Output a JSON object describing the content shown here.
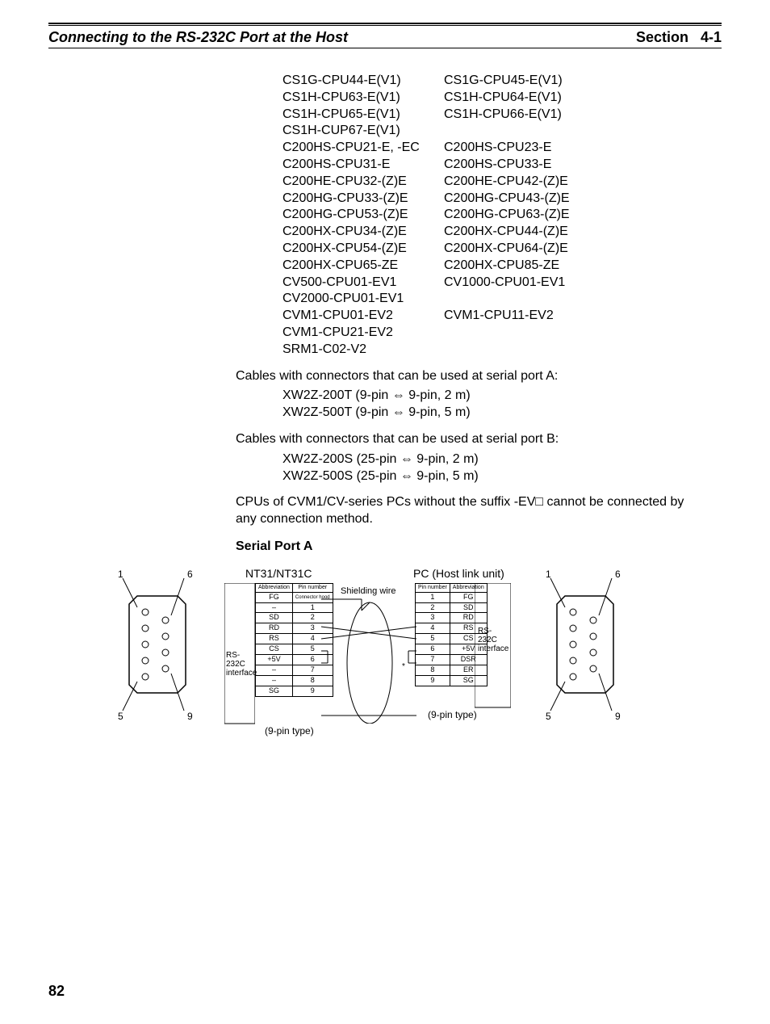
{
  "header": {
    "left": "Connecting to the RS-232C Port at the Host",
    "right_label": "Section",
    "right_num": "4-1"
  },
  "models": [
    [
      "CS1G-CPU44-E(V1)",
      "CS1G-CPU45-E(V1)"
    ],
    [
      "CS1H-CPU63-E(V1)",
      "CS1H-CPU64-E(V1)"
    ],
    [
      "CS1H-CPU65-E(V1)",
      "CS1H-CPU66-E(V1)"
    ],
    [
      "CS1H-CUP67-E(V1)",
      ""
    ],
    [
      "C200HS-CPU21-E, -EC",
      "C200HS-CPU23-E"
    ],
    [
      "C200HS-CPU31-E",
      "C200HS-CPU33-E"
    ],
    [
      "C200HE-CPU32-(Z)E",
      "C200HE-CPU42-(Z)E"
    ],
    [
      "C200HG-CPU33-(Z)E",
      "C200HG-CPU43-(Z)E"
    ],
    [
      "C200HG-CPU53-(Z)E",
      "C200HG-CPU63-(Z)E"
    ],
    [
      "C200HX-CPU34-(Z)E",
      "C200HX-CPU44-(Z)E"
    ],
    [
      "C200HX-CPU54-(Z)E",
      "C200HX-CPU64-(Z)E"
    ],
    [
      "C200HX-CPU65-ZE",
      "C200HX-CPU85-ZE"
    ],
    [
      "CV500-CPU01-EV1",
      "CV1000-CPU01-EV1"
    ],
    [
      "CV2000-CPU01-EV1",
      ""
    ],
    [
      "CVM1-CPU01-EV2",
      "CVM1-CPU11-EV2"
    ],
    [
      "CVM1-CPU21-EV2",
      ""
    ],
    [
      "SRM1-C02-V2",
      ""
    ]
  ],
  "text": {
    "cables_a": "Cables with connectors that can be used at serial port A:",
    "cable_a1": "XW2Z-200T (9-pin ⇔ 9-pin, 2 m)",
    "cable_a2": "XW2Z-500T (9-pin ⇔ 9-pin, 5 m)",
    "cables_b": "Cables with connectors that can be used at serial port B:",
    "cable_b1": "XW2Z-200S (25-pin ⇔ 9-pin, 2 m)",
    "cable_b2": "XW2Z-500S (25-pin ⇔ 9-pin, 5 m)",
    "note": "CPUs of CVM1/CV-series PCs without the suffix -EV□ cannot be connected by any connection method.",
    "serial_heading": "Serial Port A"
  },
  "diagram": {
    "left_title": "NT31/NT31C",
    "right_title": "PC (Host link unit)",
    "shielding": "Shielding wire",
    "rs232c": "RS-232C interface",
    "pin_type": "(9-pin type)",
    "left_table": {
      "headers": [
        "Abbreviation",
        "Pin number"
      ],
      "rows": [
        [
          "FG",
          "Connector hood"
        ],
        [
          "–",
          "1"
        ],
        [
          "SD",
          "2"
        ],
        [
          "RD",
          "3"
        ],
        [
          "RS",
          "4"
        ],
        [
          "CS",
          "5"
        ],
        [
          "+5V",
          "6"
        ],
        [
          "–",
          "7"
        ],
        [
          "–",
          "8"
        ],
        [
          "SG",
          "9"
        ]
      ]
    },
    "right_table": {
      "headers": [
        "Pin number",
        "Abbreviation"
      ],
      "rows": [
        [
          "1",
          "FG"
        ],
        [
          "2",
          "SD"
        ],
        [
          "3",
          "RD"
        ],
        [
          "4",
          "RS"
        ],
        [
          "5",
          "CS"
        ],
        [
          "6",
          "+5V"
        ],
        [
          "7",
          "DSR"
        ],
        [
          "8",
          "ER"
        ],
        [
          "9",
          "SG"
        ]
      ]
    },
    "conn_labels": {
      "p1": "1",
      "p5": "5",
      "p6": "6",
      "p9": "9"
    }
  },
  "page_number": "82",
  "colors": {
    "text": "#000000",
    "bg": "#ffffff"
  }
}
